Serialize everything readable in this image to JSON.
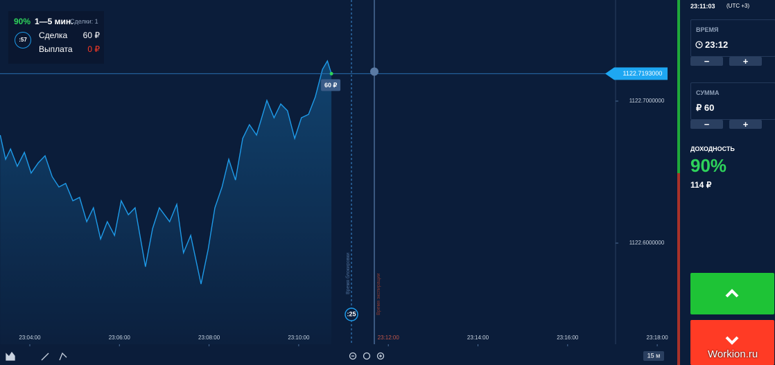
{
  "deal_panel": {
    "percent": "90%",
    "duration": "1—5 мин.",
    "deals": "Сделки: 1",
    "timer": ":57",
    "deal_label": "Сделка",
    "deal_value": "60 ₽",
    "payout_label": "Выплата",
    "payout_value": "0 ₽"
  },
  "chart_data": {
    "type": "line",
    "color": "#1e9be9",
    "x": [
      3.34,
      3.46,
      3.57,
      3.72,
      3.88,
      4.03,
      4.19,
      4.34,
      4.5,
      4.65,
      4.8,
      4.96,
      5.11,
      5.27,
      5.42,
      5.58,
      5.73,
      5.89,
      6.04,
      6.2,
      6.35,
      6.58,
      6.74,
      6.89,
      7.12,
      7.28,
      7.43,
      7.59,
      7.82,
      7.98,
      8.13,
      8.29,
      8.44,
      8.59,
      8.75,
      8.9,
      9.06,
      9.29,
      9.45,
      9.6,
      9.75,
      9.91,
      10.06,
      10.22,
      10.37,
      10.53,
      10.64,
      10.73
    ],
    "values": [
      1122.6761,
      1122.659,
      1122.6663,
      1122.6541,
      1122.6639,
      1122.6493,
      1122.6566,
      1122.6615,
      1122.6468,
      1122.6395,
      1122.642,
      1122.6298,
      1122.6322,
      1122.6151,
      1122.6249,
      1122.6029,
      1122.6151,
      1122.6054,
      1122.6298,
      1122.62,
      1122.6249,
      1122.5834,
      1122.6102,
      1122.6249,
      1122.6151,
      1122.6273,
      1122.5932,
      1122.6054,
      1122.5712,
      1122.5956,
      1122.6249,
      1122.6395,
      1122.659,
      1122.6444,
      1122.6737,
      1122.6834,
      1122.6761,
      1122.7005,
      1122.6883,
      1122.698,
      1122.6932,
      1122.6737,
      1122.6883,
      1122.6907,
      1122.7029,
      1122.7224,
      1122.7283,
      1122.7193
    ],
    "xlim": [
      3.335,
      18.416
    ],
    "ylim": [
      1122.5288,
      1122.7712
    ],
    "xticks": [
      {
        "value": 4,
        "label": "23:04:00"
      },
      {
        "value": 6,
        "label": "23:06:00"
      },
      {
        "value": 8,
        "label": "23:08:00"
      },
      {
        "value": 10,
        "label": "23:10:00"
      },
      {
        "value": 12,
        "label": "23:12:00"
      },
      {
        "value": 14,
        "label": "23:14:00"
      },
      {
        "value": 16,
        "label": "23:16:00"
      },
      {
        "value": 18,
        "label": "23:18:00"
      }
    ],
    "yticks": [
      {
        "value": 1122.7,
        "label": "1122.7000000"
      },
      {
        "value": 1122.6,
        "label": "1122.6000000"
      }
    ],
    "price_marker": {
      "value": 1122.7193,
      "label": "1122.7193000"
    }
  },
  "chart_overlay": {
    "buy_tag": "60 ₽",
    "lock_label": "Время блокировки",
    "expiry_label": "Время экспирации",
    "countdown": ":25",
    "timeframe": "15 м"
  },
  "sidebar": {
    "clock": "23:11:03",
    "timezone": "(UTC +3)",
    "time_label": "ВРЕМЯ",
    "time_value": "23:12",
    "time_controls": [
      "−",
      "+"
    ],
    "amount_label": "СУММА",
    "amount_value": "₽ 60",
    "amount_controls": [
      "−",
      "+"
    ],
    "yield_label": "ДОХОДНОСТЬ",
    "yield_percent": "90%",
    "yield_amount": "114 ₽"
  },
  "watermark": "Workion.ru"
}
